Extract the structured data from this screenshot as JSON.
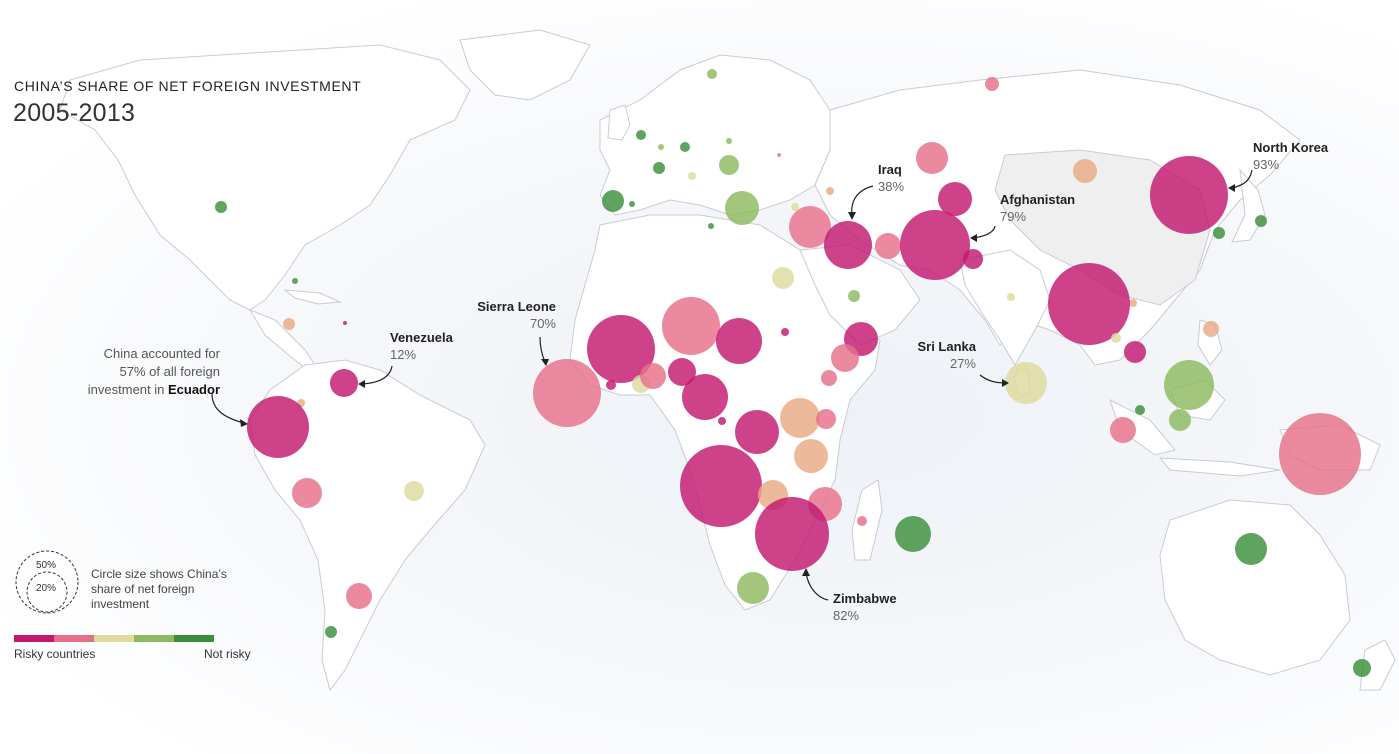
{
  "title": {
    "kicker": "CHINA’S SHARE OF NET FOREIGN INVESTMENT",
    "period": "2005-2013"
  },
  "annotation": {
    "line1": "China accounted for",
    "line2": "57% of all foreign",
    "line3_prefix": "investment in ",
    "line3_country": "Ecuador"
  },
  "callouts": {
    "venezuela": {
      "name": "Venezuela",
      "pct": "12%"
    },
    "sierra_leone": {
      "name": "Sierra Leone",
      "pct": "70%"
    },
    "iraq": {
      "name": "Iraq",
      "pct": "38%"
    },
    "afghanistan": {
      "name": "Afghanistan",
      "pct": "79%"
    },
    "north_korea": {
      "name": "North Korea",
      "pct": "93%"
    },
    "sri_lanka": {
      "name": "Sri Lanka",
      "pct": "27%"
    },
    "zimbabwe": {
      "name": "Zimbabwe",
      "pct": "82%"
    }
  },
  "legend": {
    "size_ring_large": "50%",
    "size_ring_small": "20%",
    "size_text": "Circle size shows China’s share of net foreign investment",
    "scale_left": "Risky countries",
    "scale_right": "Not risky",
    "scale_colors": [
      "#c2196f",
      "#e6708a",
      "#dedb9c",
      "#8cba5f",
      "#3b8f3b"
    ]
  },
  "colors": {
    "risk_high": "#c2196f",
    "risk_mid_high": "#e6708a",
    "risk_mid": "#dedb9c",
    "risk_low": "#8cba5f",
    "risk_none": "#3b8f3b",
    "orange": "#e8aa85",
    "land_stroke": "#c8ccd2"
  }
}
